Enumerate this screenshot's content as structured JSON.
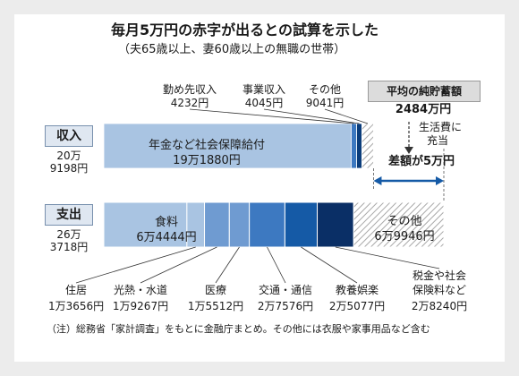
{
  "title": "毎月5万円の赤字が出るとの試算を示した",
  "subtitle": "（夫65歳以上、妻60歳以上の無職の世帯）",
  "chart_data": {
    "type": "bar",
    "stacking": "horizontal stacked, 2 rows",
    "unit": "円/月",
    "income": {
      "label": "収入",
      "total_text": [
        "20万",
        "9198円"
      ],
      "total": 209198,
      "segments": [
        {
          "name": "年金など社会保障給付",
          "value_text": "19万1880円",
          "value": 191880
        },
        {
          "name": "勤め先収入",
          "value_text": "4232円",
          "value": 4232
        },
        {
          "name": "事業収入",
          "value_text": "4045円",
          "value": 4045
        },
        {
          "name": "その他",
          "value_text": "9041円",
          "value": 9041
        }
      ]
    },
    "expense": {
      "label": "支出",
      "total_text": [
        "26万",
        "3718円"
      ],
      "total": 263718,
      "segments": [
        {
          "name": "食料",
          "value_text": "6万4444円",
          "value": 64444
        },
        {
          "name": "住居",
          "value_text": "1万3656円",
          "value": 13656
        },
        {
          "name": "光熱・水道",
          "value_text": "1万9267円",
          "value": 19267
        },
        {
          "name": "医療",
          "value_text": "1万5512円",
          "value": 15512
        },
        {
          "name": "交通・通信",
          "value_text": "2万7576円",
          "value": 27576
        },
        {
          "name": "教養娯楽",
          "value_text": "2万5077円",
          "value": 25077
        },
        {
          "name": "税金や社会保険料など",
          "value_text": "2万8240円",
          "value": 28240
        },
        {
          "name": "その他",
          "value_text": "6万9946円",
          "value": 69946
        }
      ]
    },
    "gap_label": "差額が5万円",
    "savings_box": "平均の純貯蓄額",
    "savings_value": "2484万円",
    "savings_note": "生活費に充当",
    "colors": {
      "light_blue": "#a9c4e2",
      "mid_blue": "#6f9bd1",
      "blue": "#3d79c1",
      "dark_blue": "#155aa6",
      "navy": "#0b3d7b",
      "navy2": "#0a2f66",
      "hatch": "#b9b9b9"
    }
  },
  "labels": {
    "top_other_income": "その他",
    "top_work_income": "勤め先収入",
    "top_business_income": "事業収入",
    "expense_other": "その他",
    "expense_tax_line1": "税金や社会",
    "expense_tax_line2": "保険料など",
    "savings_note_line1": "生活費に",
    "savings_note_line2": "充当"
  },
  "note": "（注）総務省「家計調査」をもとに金融庁まとめ。その他には衣服や家事用品など含む"
}
